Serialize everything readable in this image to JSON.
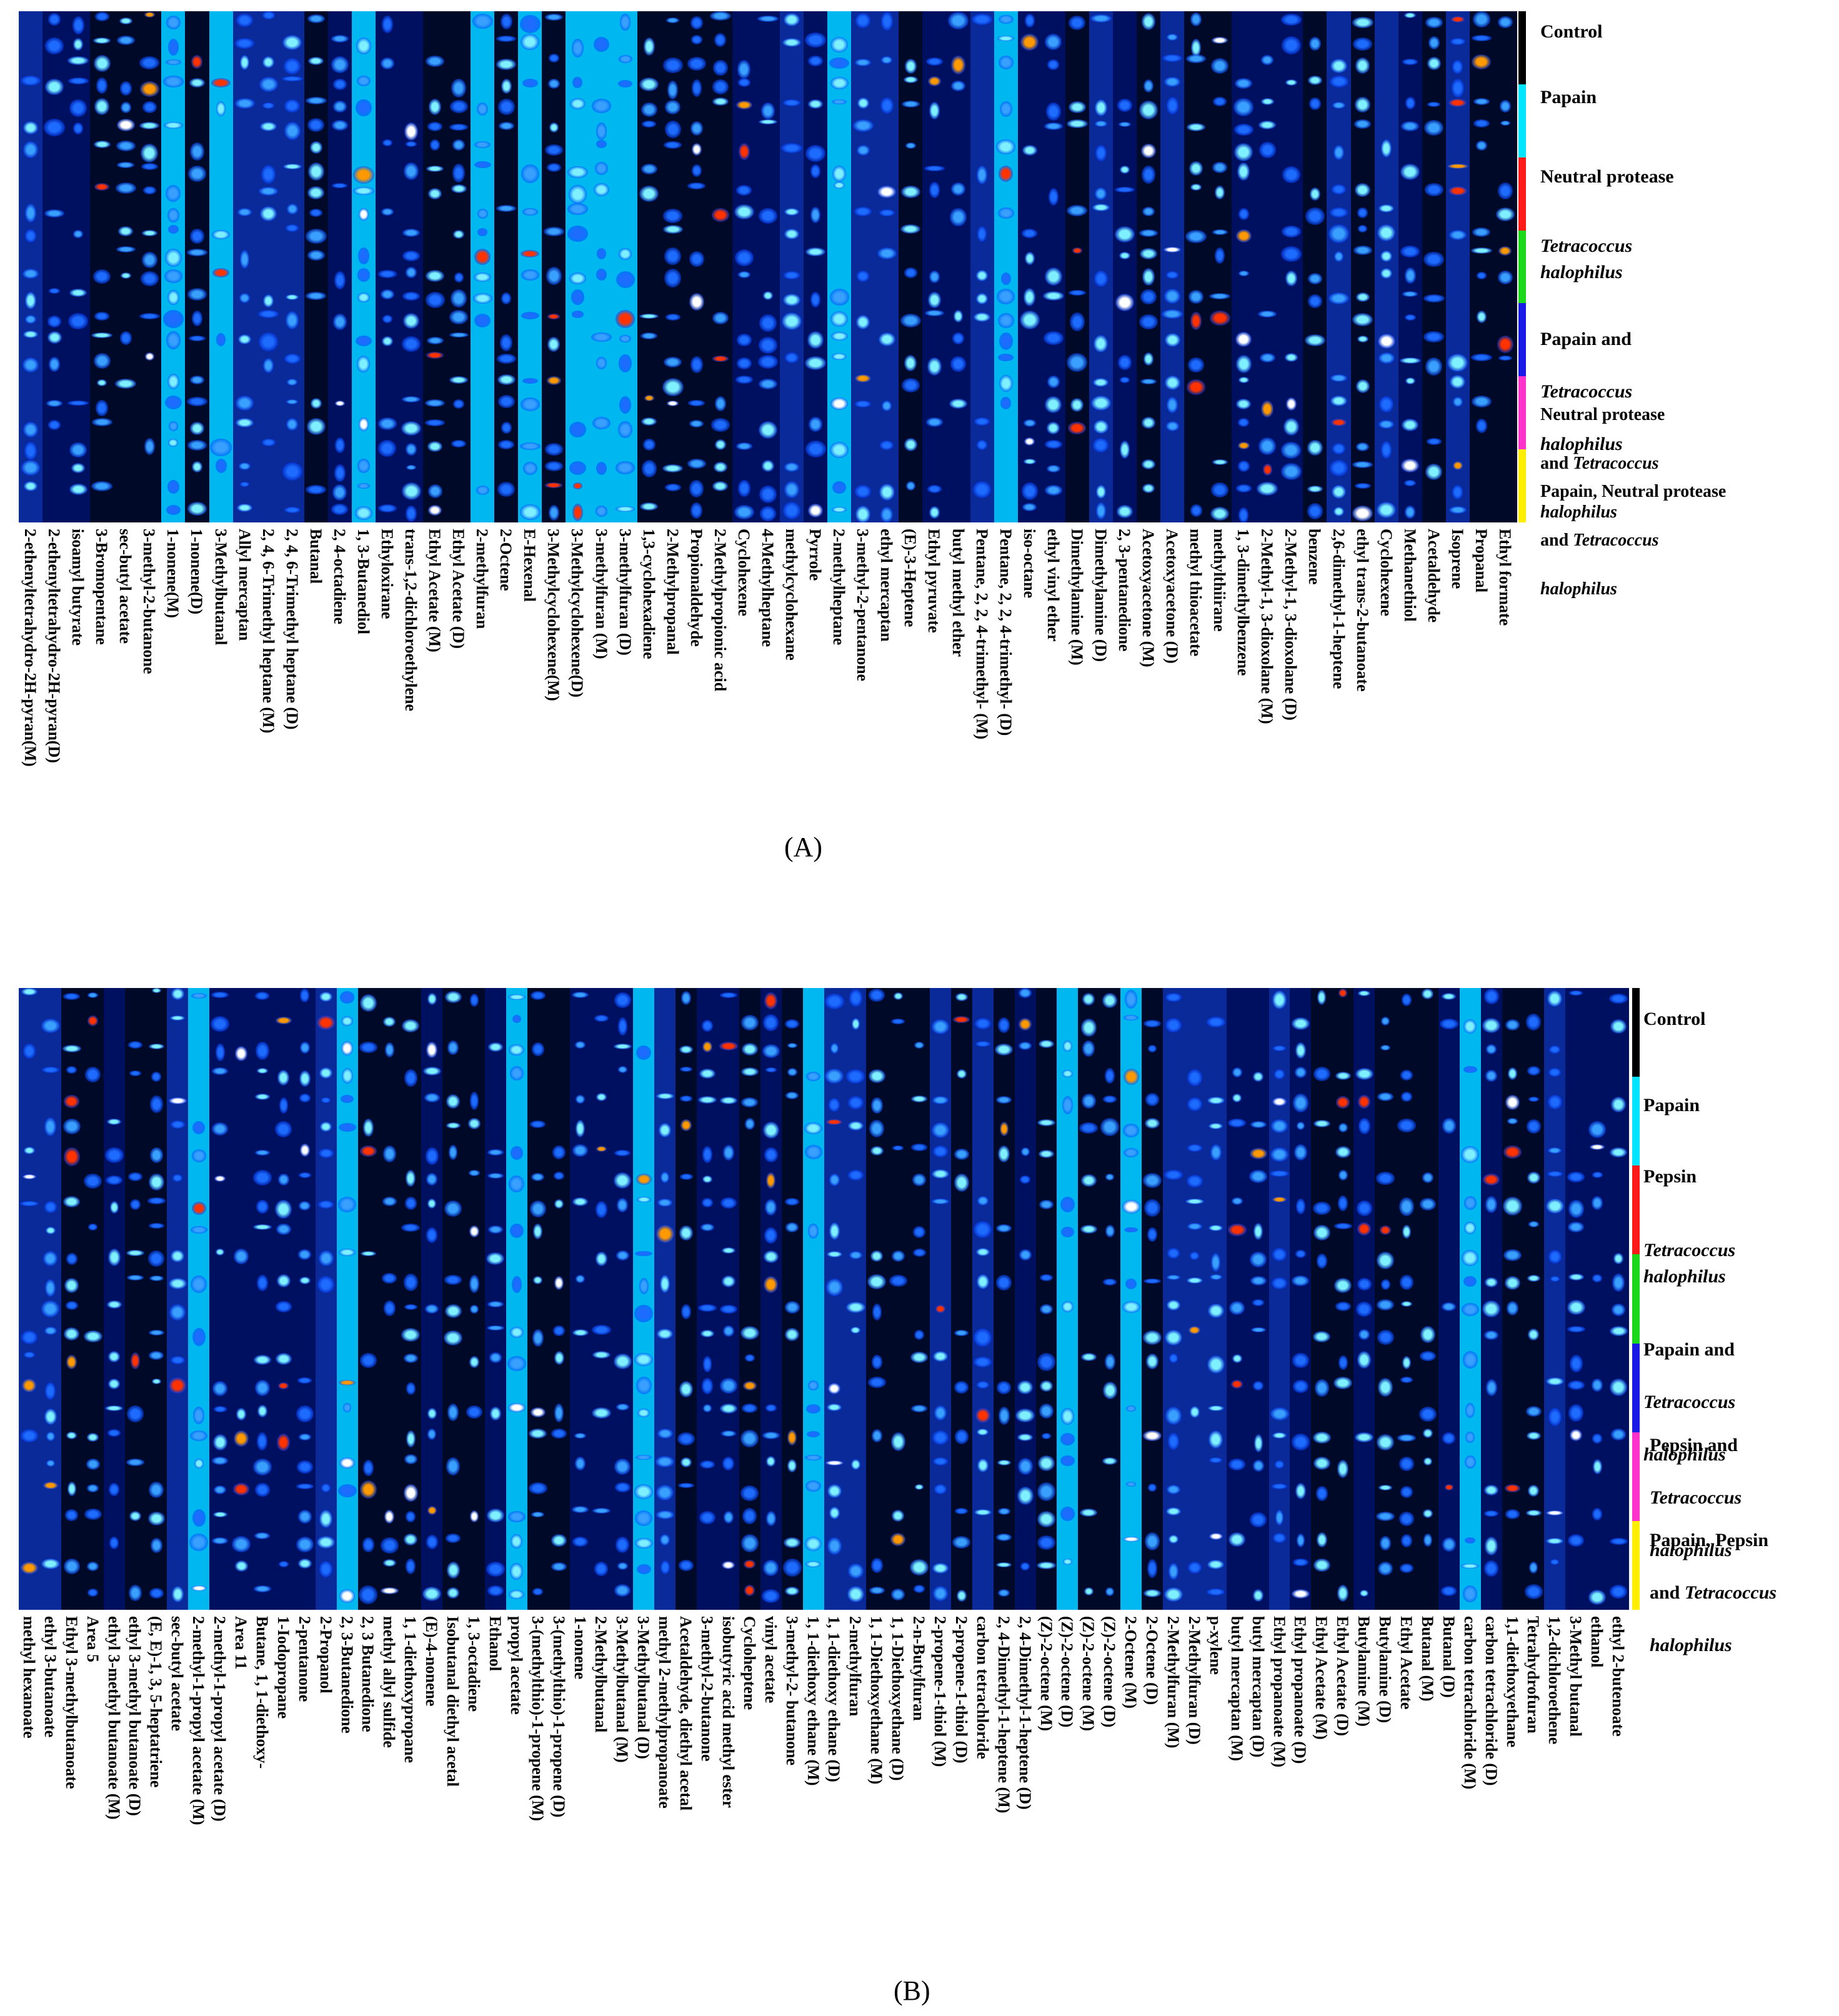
{
  "chart_data": [
    {
      "type": "heatmap",
      "panel_label": "(A)",
      "groups": [
        {
          "name": "Control",
          "color": "#000000"
        },
        {
          "name": "Papain",
          "color": "#00e5ff"
        },
        {
          "name": "Neutral protease",
          "color": "#ff1a1a"
        },
        {
          "name": "Tetracoccus halophilus",
          "color": "#1bd81b"
        },
        {
          "name": "Papain and Tetracoccus halophilus",
          "color": "#1a1ae6"
        },
        {
          "name": "Neutral protease and Tetracoccus halophilus",
          "color": "#ff33cc"
        },
        {
          "name": "Papain, Neutral protease and Tetracoccus halophilus",
          "color": "#ffee00"
        }
      ],
      "compounds": [
        "2-ethenyltetrahydro-2H-pyran(M)",
        "2-ethenyltetrahydro-2H-pyran(D)",
        "isoamyl butyrate",
        "3-Bromopentane",
        "sec-butyl acetate",
        "3-methyl-2-butanone",
        "1-nonene(M)",
        "1-nonene(D)",
        "3-Methylbutanal",
        "Allyl mercaptan",
        "2, 4, 6-Trimethyl heptane (M)",
        "2, 4, 6-Trimethyl heptane (D)",
        "Butanal",
        "2, 4-octadiene",
        "1, 3-Butanediol",
        "Ethyloxirane",
        "trans-1,2-dichloroethylene",
        "Ethyl Acetate (M)",
        "Ethyl Acetate (D)",
        "2-methylfuran",
        "2-Octene",
        "E-Hexenal",
        "3-Methylcyclohexene(M)",
        "3-Methylcyclohexene(D)",
        "3-methylfuran (M)",
        "3-methylfuran (D)",
        "1,3-cyclohexadiene",
        "2-Methylpropanal",
        "Propionaldehyde",
        "2-Methylpropionic acid",
        "Cyclohexene",
        "4-Methylheptane",
        "methylcyclohexane",
        "Pyrrole",
        "2-methylheptane",
        "3-methyl-2-pentanone",
        "ethyl mercaptan",
        "(E)-3-Heptene",
        "Ethyl pyruvate",
        "butyl methyl ether",
        "Pentane, 2, 2, 4-trimethyl- (M)",
        "Pentane, 2, 2, 4-trimethyl- (D)",
        "iso-octane",
        "ethyl vinyl ether",
        "Dimethylamine (M)",
        "Dimethylamine (D)",
        "2, 3-pentanedione",
        "Acetoxyacetone (M)",
        "Acetoxyacetone (D)",
        "methyl thioacetate",
        "methylthiirane",
        "1, 3-dimethylbenzene",
        "2-Methyl-1, 3-dioxolane (M)",
        "2-Methyl-1, 3-dioxolane (D)",
        "benzene",
        "2,6-dimethyl-1-heptene",
        "ethyl trans-2-butanoate",
        "Cyclohexene",
        "Methanethiol",
        "Acetaldehyde",
        "Isoprene",
        "Propanal",
        "Ethyl formate"
      ]
    },
    {
      "type": "heatmap",
      "panel_label": "(B)",
      "groups": [
        {
          "name": "Control",
          "color": "#000000"
        },
        {
          "name": "Papain",
          "color": "#00e5ff"
        },
        {
          "name": "Pepsin",
          "color": "#ff1a1a"
        },
        {
          "name": "Tetracoccus halophilus",
          "color": "#1bd81b"
        },
        {
          "name": "Papain and Tetracoccus halophilus",
          "color": "#1a1ae6"
        },
        {
          "name": "Pepsin and Tetracoccus halophilus",
          "color": "#ff33cc"
        },
        {
          "name": "Papain, Pepsin and Tetracoccus halophilus",
          "color": "#ffee00"
        }
      ],
      "compounds": [
        "methyl hexanoate",
        "ethyl 3-butanoate",
        "Ethyl 3-methylbutanoate",
        "Area 5",
        "ethyl 3-methyl butanoate (M)",
        "ethyl 3-methyl butanoate (D)",
        "(E, E)-1, 3, 5-heptatriene",
        "sec-butyl acetate",
        "2-methyl-1-propyl acetate (M)",
        "2-methyl-1-propyl acetate (D)",
        "Area 11",
        "Butane, 1, 1-diethoxy-",
        "1-Iodopropane",
        "2-pentanone",
        "2-Propanol",
        "2, 3-Butanedione",
        "2, 3 Butanedione",
        "methyl allyl sulfide",
        "1, 1-diethoxypropane",
        "(E)-4-nonene",
        "Isobutanal diethyl acetal",
        "1, 3-octadiene",
        "Ethanol",
        "propyl acetate",
        "3-(methylthio)-1-propene (M)",
        "3-(methylthio)-1-propene (D)",
        "1-nonene",
        "2-Methylbutanal",
        "3-Methylbutanal (M)",
        "3-Methylbutanal (D)",
        "methyl 2-methylpropanoate",
        "Acetaldehyde, diethyl acetal",
        "3-methyl-2-butanone",
        "isobutyric acid methyl ester",
        "Cycloheptene",
        "vinyl acetate",
        "3-methyl-2- butanone",
        "1, 1-diethoxy ethane (M)",
        "1, 1-diethoxy ethane (D)",
        "2-methylfuran",
        "1, 1-Diethoxyethane (M)",
        "1, 1-Diethoxyethane (D)",
        "2-n-Butylfuran",
        "2-propene-1-thiol (M)",
        "2-propene-1-thiol (D)",
        "carbon tetrachloride",
        "2, 4-Dimethyl-1-heptene (M)",
        "2, 4-Dimethyl-1-heptene (D)",
        "(Z)-2-octene (M)",
        "(Z)-2-octene (D)",
        "(Z)-2-octene (M)",
        "(Z)-2-octene (D)",
        "2-Octene (M)",
        "2-Octene (D)",
        "2-Methylfuran (M)",
        "2-Methylfuran (D)",
        "p-xylene",
        "butyl mercaptan (M)",
        "butyl mercaptan (D)",
        "Ethyl propanoate (M)",
        "Ethyl propanoate (D)",
        "Ethyl Acetate (M)",
        "Ethyl Acetate (D)",
        "Butylamine (M)",
        "Butylamine (D)",
        "Ethyl Acetate",
        "Butanal (M)",
        "Butanal (D)",
        "carbon tetrachloride (M)",
        "carbon tetrachloride (D)",
        "1,1-diethoxyethane",
        "Tetrahydrofuran",
        "1,2-dichloroethene",
        "3-Methyl butanal",
        "ethanol",
        "ethyl 2-butenoate"
      ]
    }
  ],
  "legend_A": {
    "g1": "Control",
    "g2": "Papain",
    "g3": "Neutral protease",
    "g4": "Tetracoccus\nhalophilus",
    "g5a": "Papain and",
    "g5b": "Tetracoccus",
    "g5c": "halophilus",
    "g6a": "Neutral protease",
    "g6b": "and ",
    "g6c": "Tetracoccus",
    "g6d": "halophilus",
    "g7a": "Papain, Neutral protease",
    "g7b": "and ",
    "g7c": "Tetracoccus",
    "g7d": "halophilus"
  },
  "legend_B": {
    "g1": "Control",
    "g2": "Papain",
    "g3": "Pepsin",
    "g4": "Tetracoccus\nhalophilus",
    "g5a": "Papain and",
    "g5b": "Tetracoccus",
    "g5c": "halophilus",
    "g6a": "Pepsin and",
    "g6b": "Tetracoccus",
    "g6c": "halophilus",
    "g7a": "Papain, Pepsin",
    "g7b": "and ",
    "g7c": "Tetracoccus",
    "g7d": "halophilus"
  },
  "captions": {
    "a": "(A)",
    "b": "(B)"
  }
}
